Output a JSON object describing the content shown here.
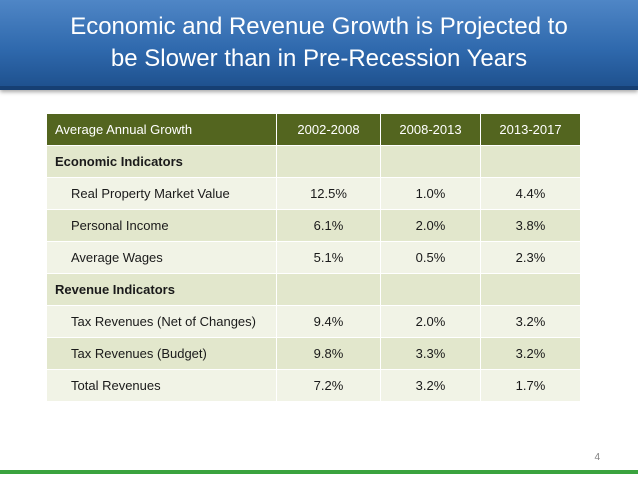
{
  "title": {
    "line1": "Economic and Revenue Growth is Projected to",
    "line2": "be Slower than in Pre-Recession Years"
  },
  "table": {
    "headers": [
      "Average Annual Growth",
      "2002-2008",
      "2008-2013",
      "2013-2017"
    ],
    "sections": [
      {
        "label": "Economic Indicators",
        "rows": [
          {
            "label": "Real Property Market Value",
            "values": [
              "12.5%",
              "1.0%",
              "4.4%"
            ]
          },
          {
            "label": "Personal Income",
            "values": [
              "6.1%",
              "2.0%",
              "3.8%"
            ]
          },
          {
            "label": "Average Wages",
            "values": [
              "5.1%",
              "0.5%",
              "2.3%"
            ]
          }
        ]
      },
      {
        "label": "Revenue Indicators",
        "rows": [
          {
            "label": "Tax Revenues (Net of Changes)",
            "values": [
              "9.4%",
              "2.0%",
              "3.2%"
            ]
          },
          {
            "label": "Tax Revenues (Budget)",
            "values": [
              "9.8%",
              "3.3%",
              "3.2%"
            ]
          },
          {
            "label": "Total Revenues",
            "values": [
              "7.2%",
              "3.2%",
              "1.7%"
            ]
          }
        ]
      }
    ]
  },
  "page_number": "4",
  "colors": {
    "title_bar": "#2f69ad",
    "header_row": "#53651f",
    "row_light": "#f1f3e6",
    "row_dark": "#e2e7cc",
    "footer_line": "#3aa33e"
  }
}
